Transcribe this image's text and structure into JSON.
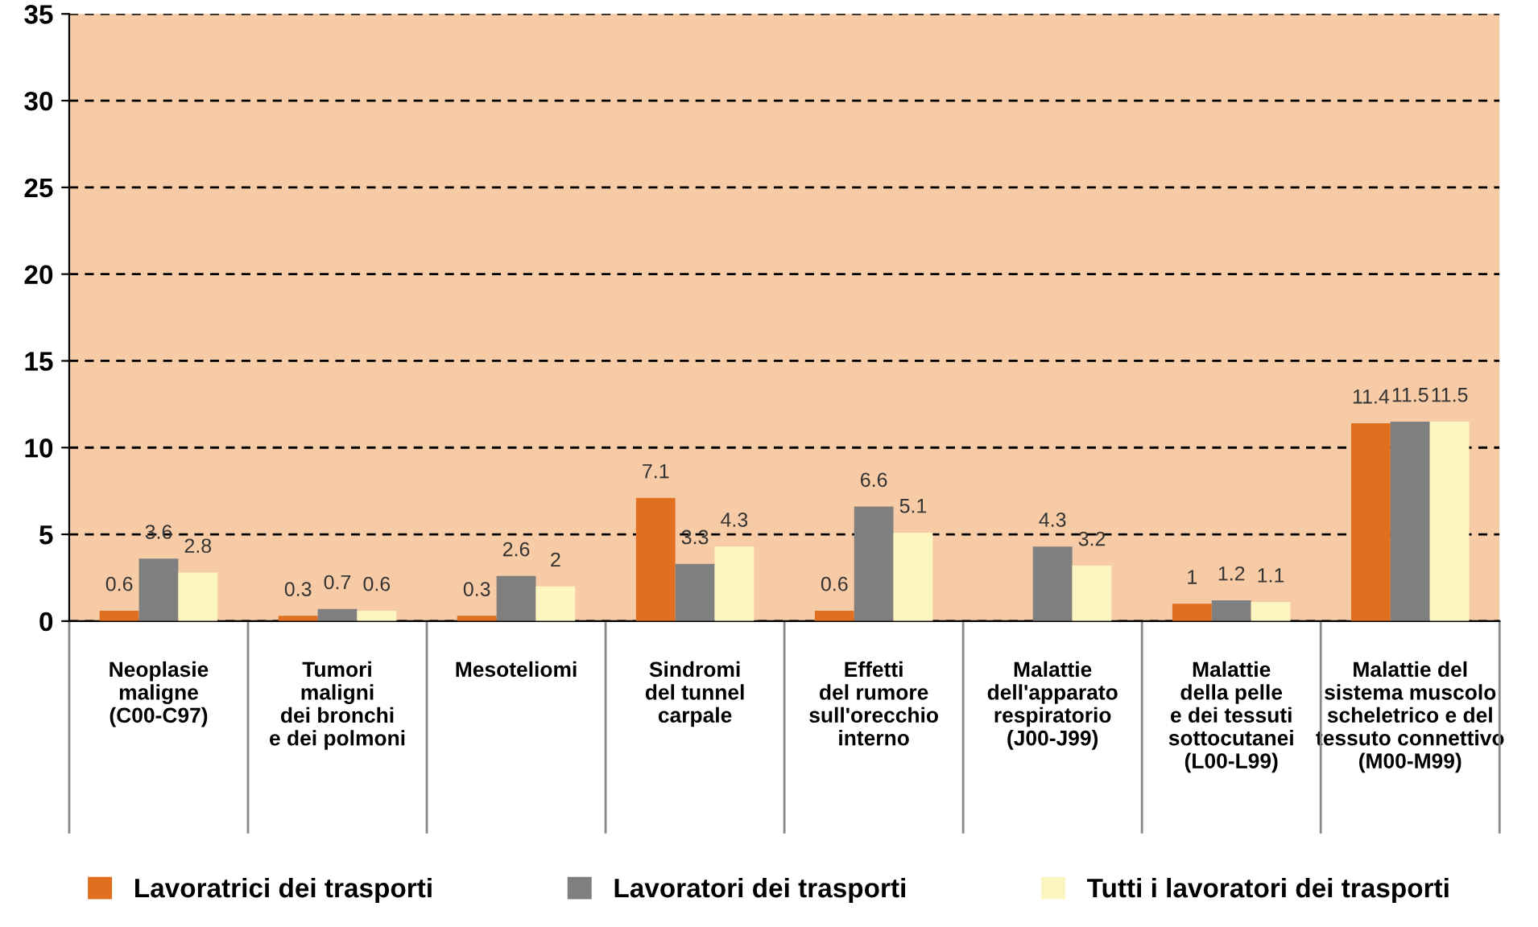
{
  "chart_data": {
    "type": "bar",
    "categories": [
      "Neoplasie\nmaligne\n(C00-C97)",
      "Tumori\nmaligni\ndei bronchi\ne dei polmoni",
      "Mesoteliomi",
      "Sindromi\ndel tunnel\ncarpale",
      "Effetti\ndel rumore\nsull'orecchio\ninterno",
      "Malattie\ndell'apparato\nrespiratorio\n(J00-J99)",
      "Malattie\ndella pelle\ne dei tessuti\nsottocutanei\n(L00-L99)",
      "Malattie del\nsistema muscolo\nscheletrico e del\ntessuto connettivo\n(M00-M99)"
    ],
    "series": [
      {
        "name": "Lavoratrici dei trasporti",
        "color": "#e07020",
        "values": [
          0.6,
          0.3,
          0.3,
          7.1,
          0.6,
          null,
          1,
          11.4
        ]
      },
      {
        "name": "Lavoratori dei trasporti",
        "color": "#7f7f7f",
        "values": [
          3.6,
          0.7,
          2.6,
          3.3,
          6.6,
          4.3,
          1.2,
          11.5
        ]
      },
      {
        "name": "Tutti i lavoratori dei trasporti",
        "color": "#fdf5c0",
        "values": [
          2.8,
          0.6,
          2,
          4.3,
          5.1,
          3.2,
          1.1,
          11.5
        ]
      }
    ],
    "ylim": [
      0,
      35
    ],
    "yticks": [
      0,
      5,
      10,
      15,
      20,
      25,
      30,
      35
    ],
    "grid": "y",
    "legend": "bottom",
    "data_labels": true
  }
}
